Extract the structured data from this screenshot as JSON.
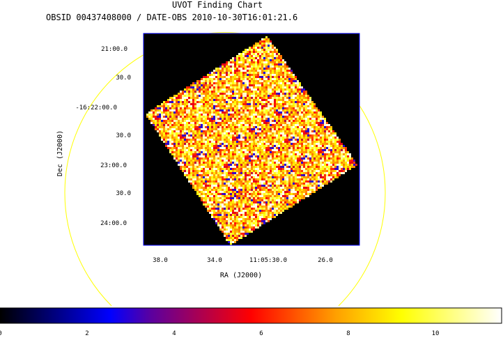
{
  "chart_data": {
    "type": "heatmap",
    "title": "UVOT Finding Chart",
    "subtitle": "OBSID 00437408000 / DATE-OBS 2010-10-30T16:01:21.6",
    "xlabel": "RA (J2000)",
    "ylabel": "Dec (J2000)",
    "x_ticks": [
      "38.0",
      "34.0",
      "11:05:30.0",
      "26.0"
    ],
    "y_ticks": [
      "21:00.0",
      "30.0",
      "-16:22:00.0",
      "30.0",
      "23:00.0",
      "30.0",
      "24:00.0"
    ],
    "colorbar": {
      "range": [
        0,
        11.5
      ],
      "ticks": [
        "0",
        "2",
        "4",
        "6",
        "8",
        "10"
      ],
      "colormap": [
        "#000000",
        "#0000ff",
        "#ff0000",
        "#ffff00",
        "#ffffff"
      ]
    },
    "field_of_view_color": "#ffff00",
    "frame_color": "#0000ff",
    "background_color": "#000000"
  }
}
